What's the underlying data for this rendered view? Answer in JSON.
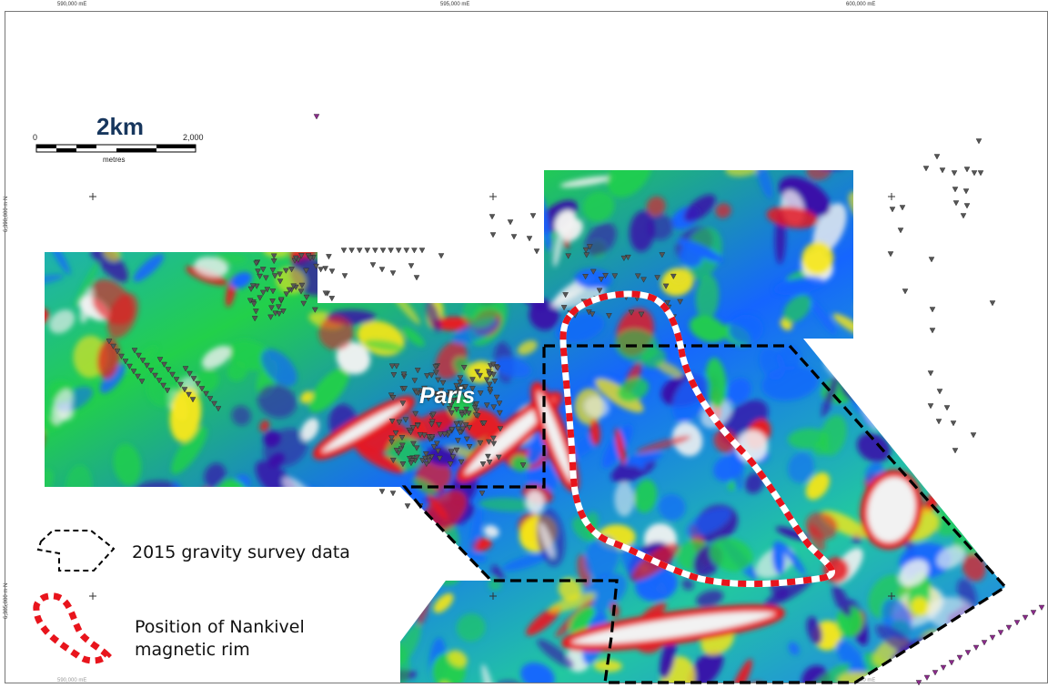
{
  "grid": {
    "easting_labels": [
      "590,000 mE",
      "595,000 mE",
      "600,000 mE"
    ],
    "easting_labels_bottom": [
      "590,000 mE",
      "595,000 mE",
      "600,000 mE"
    ],
    "northing_labels": [
      "6,390,000 m N",
      "6,385,000 m N"
    ]
  },
  "scale_bar": {
    "title": "2km",
    "start": "0",
    "end": "2,000",
    "unit": "metres"
  },
  "place_label": "Paris",
  "legend": {
    "items": [
      {
        "icon": "dashed-polygon-icon",
        "label": "2015 gravity survey data",
        "line_color": "#000000"
      },
      {
        "icon": "red-white-dashed-loop-icon",
        "label_lines": [
          "Position of Nankivel",
          "magnetic rim"
        ],
        "line_color": "#e8141c"
      }
    ]
  },
  "colors": {
    "low": "#3a0fa8",
    "mid_low": "#1565ff",
    "mid": "#22d04a",
    "mid_high": "#f5e61a",
    "high": "#e81a22",
    "peak": "#f2f2f2",
    "survey_outline": "#000000",
    "rim_primary": "#e8141c",
    "rim_secondary": "#ffffff",
    "station_marker": "#555555",
    "station_marker_alt": "#8b2a8b"
  }
}
